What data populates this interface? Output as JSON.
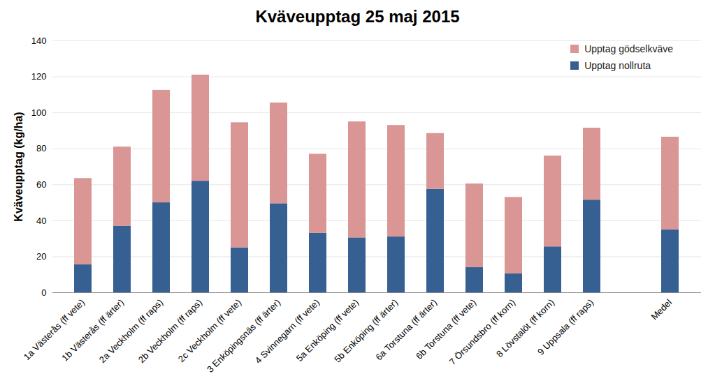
{
  "chart_data": {
    "type": "bar",
    "title": "Kväveupptag 25 maj 2015",
    "y_label": "Kväveupptag (kg/ha)",
    "categories": [
      "1a Västerås (ff vete)",
      "1b Västerås (ff ärter)",
      "2a Veckholm (ff raps)",
      "2b Veckholm (ff raps)",
      "2c Veckholm (ff vete)",
      "3 Enköpingsnäs (ff ärter)",
      "4 Svinnegarn (ff vete)",
      "5a Enköping (ff vete)",
      "5b Enköping (ff ärter)",
      "6a Torstuna (ff ärter)",
      "6b Torstuna (ff vete)",
      "7 Örsundsbro (ff korn)",
      "8 Lövstalöt (ff korn)",
      "9 Uppsala (ff raps)",
      null,
      "Medel"
    ],
    "series": [
      {
        "name": "Upptag nollruta",
        "color": "#376092",
        "values": [
          15.5,
          37,
          50,
          62,
          25,
          49.5,
          33,
          30.5,
          31,
          57.5,
          14,
          10.5,
          25.5,
          51.5,
          null,
          35
        ]
      },
      {
        "name": "Upptag gödselkväve",
        "color": "#d99694",
        "values": [
          48,
          44,
          62.5,
          59,
          69.5,
          56,
          44,
          64.5,
          62,
          31,
          46.5,
          42.5,
          50.5,
          40,
          null,
          51.5
        ]
      }
    ],
    "stacked": true,
    "ylim": [
      0,
      140
    ],
    "yticks": [
      0,
      20,
      40,
      60,
      80,
      100,
      120,
      140
    ],
    "grid": true,
    "legend": "upper right"
  }
}
